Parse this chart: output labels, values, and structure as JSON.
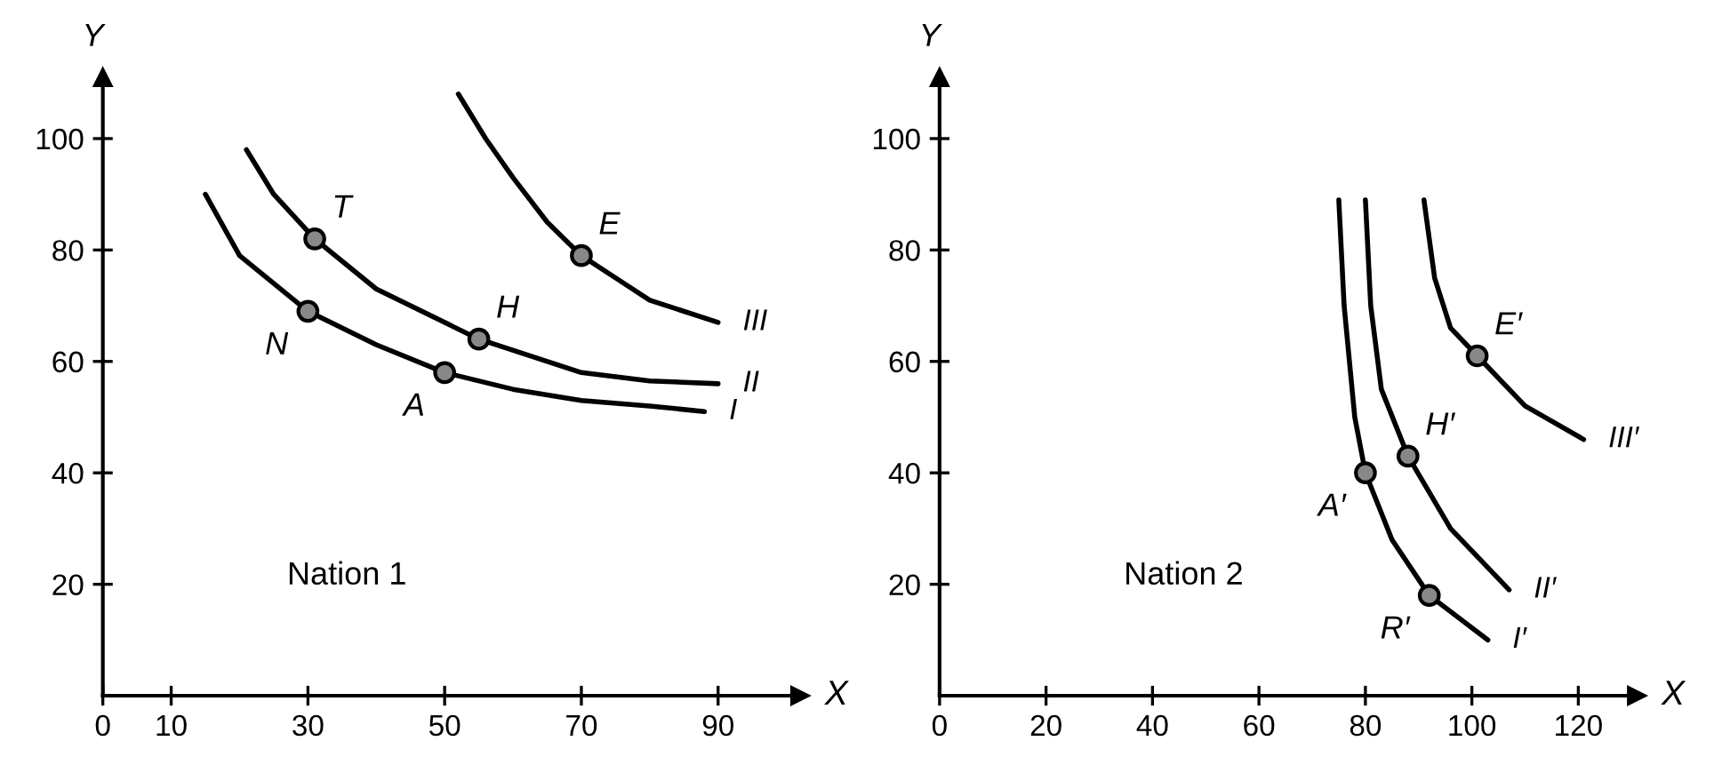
{
  "chart_data": [
    {
      "type": "line",
      "xlabel": "X",
      "ylabel": "Y",
      "xlim": [
        0,
        102
      ],
      "ylim": [
        0,
        111
      ],
      "xticks": [
        0,
        10,
        30,
        50,
        70,
        90
      ],
      "yticks": [
        20,
        40,
        60,
        80,
        100
      ],
      "grid": false,
      "legend": false,
      "series": [
        {
          "name": "I",
          "color": "#000000",
          "x": [
            15,
            20,
            30,
            40,
            50,
            60,
            70,
            80,
            88
          ],
          "values": [
            90,
            79,
            69,
            63,
            58,
            55,
            53,
            52,
            51
          ]
        },
        {
          "name": "II",
          "color": "#000000",
          "x": [
            21,
            25,
            31,
            40,
            55,
            70,
            80,
            90
          ],
          "values": [
            98,
            90,
            82,
            73,
            64,
            58,
            56.5,
            56
          ]
        },
        {
          "name": "III",
          "color": "#000000",
          "x": [
            52,
            56,
            60,
            65,
            70,
            75,
            80,
            90
          ],
          "values": [
            108,
            100,
            93,
            85,
            79,
            75,
            71,
            67
          ]
        },
        {
          "type": "scatter",
          "marker": "circle",
          "color": "#000000",
          "x": [
            30,
            31,
            50,
            55,
            70
          ],
          "values": [
            69,
            82,
            58,
            64,
            79
          ]
        }
      ],
      "annotations": [
        {
          "text": "N",
          "x": 30,
          "y": 69
        },
        {
          "text": "T",
          "x": 31,
          "y": 82
        },
        {
          "text": "A",
          "x": 50,
          "y": 58
        },
        {
          "text": "H",
          "x": 55,
          "y": 64
        },
        {
          "text": "E",
          "x": 70,
          "y": 79
        },
        "Nation 1"
      ]
    },
    {
      "type": "line",
      "xlabel": "X",
      "ylabel": "Y",
      "xlim": [
        0,
        131
      ],
      "ylim": [
        0,
        111
      ],
      "xticks": [
        0,
        20,
        40,
        60,
        80,
        100,
        120
      ],
      "yticks": [
        20,
        40,
        60,
        80,
        100
      ],
      "grid": false,
      "legend": false,
      "series": [
        {
          "name": "I′",
          "color": "#000000",
          "x": [
            75,
            76,
            78,
            80,
            85,
            92,
            103
          ],
          "values": [
            89,
            70,
            50,
            40,
            28,
            18,
            10
          ]
        },
        {
          "name": "II′",
          "color": "#000000",
          "x": [
            80,
            81,
            83,
            88,
            96,
            107
          ],
          "values": [
            89,
            70,
            55,
            43,
            30,
            19
          ]
        },
        {
          "name": "III′",
          "color": "#000000",
          "x": [
            91,
            93,
            96,
            101,
            110,
            121
          ],
          "values": [
            89,
            75,
            66,
            61,
            52,
            46
          ]
        },
        {
          "type": "scatter",
          "marker": "circle",
          "color": "#000000",
          "x": [
            80,
            92,
            88,
            101
          ],
          "values": [
            40,
            18,
            43,
            61
          ]
        }
      ],
      "annotations": [
        {
          "text": "A′",
          "x": 80,
          "y": 40
        },
        {
          "text": "R′",
          "x": 92,
          "y": 18
        },
        {
          "text": "H′",
          "x": 88,
          "y": 43
        },
        {
          "text": "E′",
          "x": 101,
          "y": 61
        },
        "Nation 2"
      ]
    }
  ]
}
